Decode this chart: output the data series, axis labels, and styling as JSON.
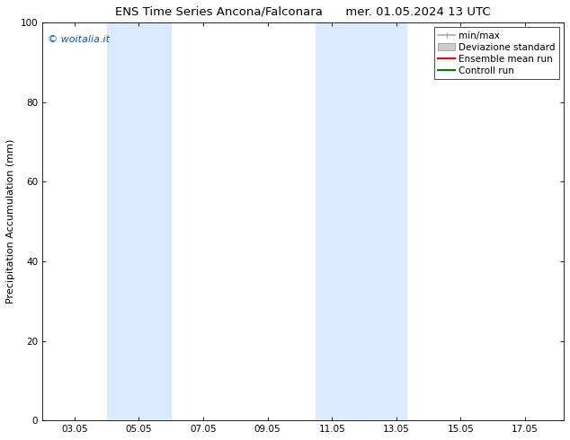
{
  "title_left": "ENS Time Series Ancona/Falconara",
  "title_right": "mer. 01.05.2024 13 UTC",
  "ylabel": "Precipitation Accumulation (mm)",
  "watermark": "© woitalia.it",
  "watermark_color": "#0055cc",
  "ylim": [
    0,
    100
  ],
  "xlim_start": 2.0,
  "xlim_end": 18.2,
  "xtick_labels": [
    "03.05",
    "05.05",
    "07.05",
    "09.05",
    "11.05",
    "13.05",
    "15.05",
    "17.05"
  ],
  "xtick_positions": [
    3,
    5,
    7,
    9,
    11,
    13,
    15,
    17
  ],
  "ytick_labels": [
    "0",
    "20",
    "40",
    "60",
    "80",
    "100"
  ],
  "ytick_positions": [
    0,
    20,
    40,
    60,
    80,
    100
  ],
  "shaded_regions": [
    {
      "x_start": 4.0,
      "x_end": 6.0,
      "color": "#daeaff"
    },
    {
      "x_start": 10.5,
      "x_end": 13.3,
      "color": "#daeaff"
    }
  ],
  "legend_items": [
    {
      "label": "min/max",
      "color": "#aaaaaa",
      "style": "minmax"
    },
    {
      "label": "Deviazione standard",
      "color": "#cccccc",
      "style": "fill"
    },
    {
      "label": "Ensemble mean run",
      "color": "#ff0000",
      "style": "line"
    },
    {
      "label": "Controll run",
      "color": "#008000",
      "style": "line"
    }
  ],
  "title_fontsize": 9.5,
  "ylabel_fontsize": 8,
  "tick_fontsize": 7.5,
  "legend_fontsize": 7.5,
  "watermark_fontsize": 8,
  "background_color": "#ffffff"
}
